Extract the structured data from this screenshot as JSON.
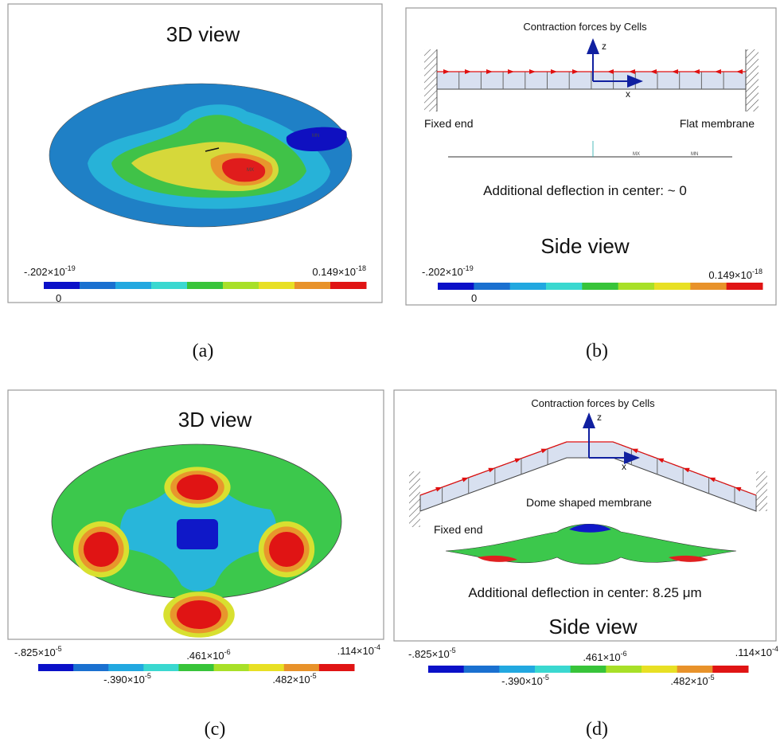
{
  "panels": [
    {
      "title": "3D view",
      "legend": {
        "min": {
          "text": "-.202×10",
          "exponent": "-19"
        },
        "max": {
          "text": "0.149×10",
          "exponent": "-18"
        },
        "zero": "0"
      },
      "markers": [
        "MX",
        "MN"
      ],
      "caption": "(a)"
    },
    {
      "heading": "Contraction forces by Cells",
      "axes": [
        "z",
        "x"
      ],
      "left_label": "Fixed end",
      "right_label": "Flat membrane",
      "markers": [
        "MX",
        "MN"
      ],
      "note": "Additional deflection in center: ~ 0",
      "title": "Side view",
      "legend": {
        "min": {
          "text": "-.202×10",
          "exponent": "-19"
        },
        "max": {
          "text": "0.149×10",
          "exponent": "-18"
        },
        "zero": "0"
      },
      "caption": "(b)"
    },
    {
      "title": "3D view",
      "legend": {
        "top": [
          {
            "text": "-.825×10",
            "exponent": "-5"
          },
          {
            "text": ".461×10",
            "exponent": "-6"
          },
          {
            "text": ".114×10",
            "exponent": "-4"
          }
        ],
        "bottom": [
          {
            "text": "-.390×10",
            "exponent": "-5"
          },
          {
            "text": ".482×10",
            "exponent": "-5"
          }
        ]
      },
      "caption": "(c)"
    },
    {
      "heading": "Contraction forces by Cells",
      "axes": [
        "z",
        "x"
      ],
      "membrane_label": "Dome shaped membrane",
      "left_label": "Fixed end",
      "note": "Additional deflection in center: 8.25 μm",
      "title": "Side view",
      "legend": {
        "top": [
          {
            "text": "-.825×10",
            "exponent": "-5"
          },
          {
            "text": ".461×10",
            "exponent": "-6"
          },
          {
            "text": ".114×10",
            "exponent": "-4"
          }
        ],
        "bottom": [
          {
            "text": "-.390×10",
            "exponent": "-5"
          },
          {
            "text": ".482×10",
            "exponent": "-5"
          }
        ]
      },
      "caption": "(d)"
    }
  ]
}
